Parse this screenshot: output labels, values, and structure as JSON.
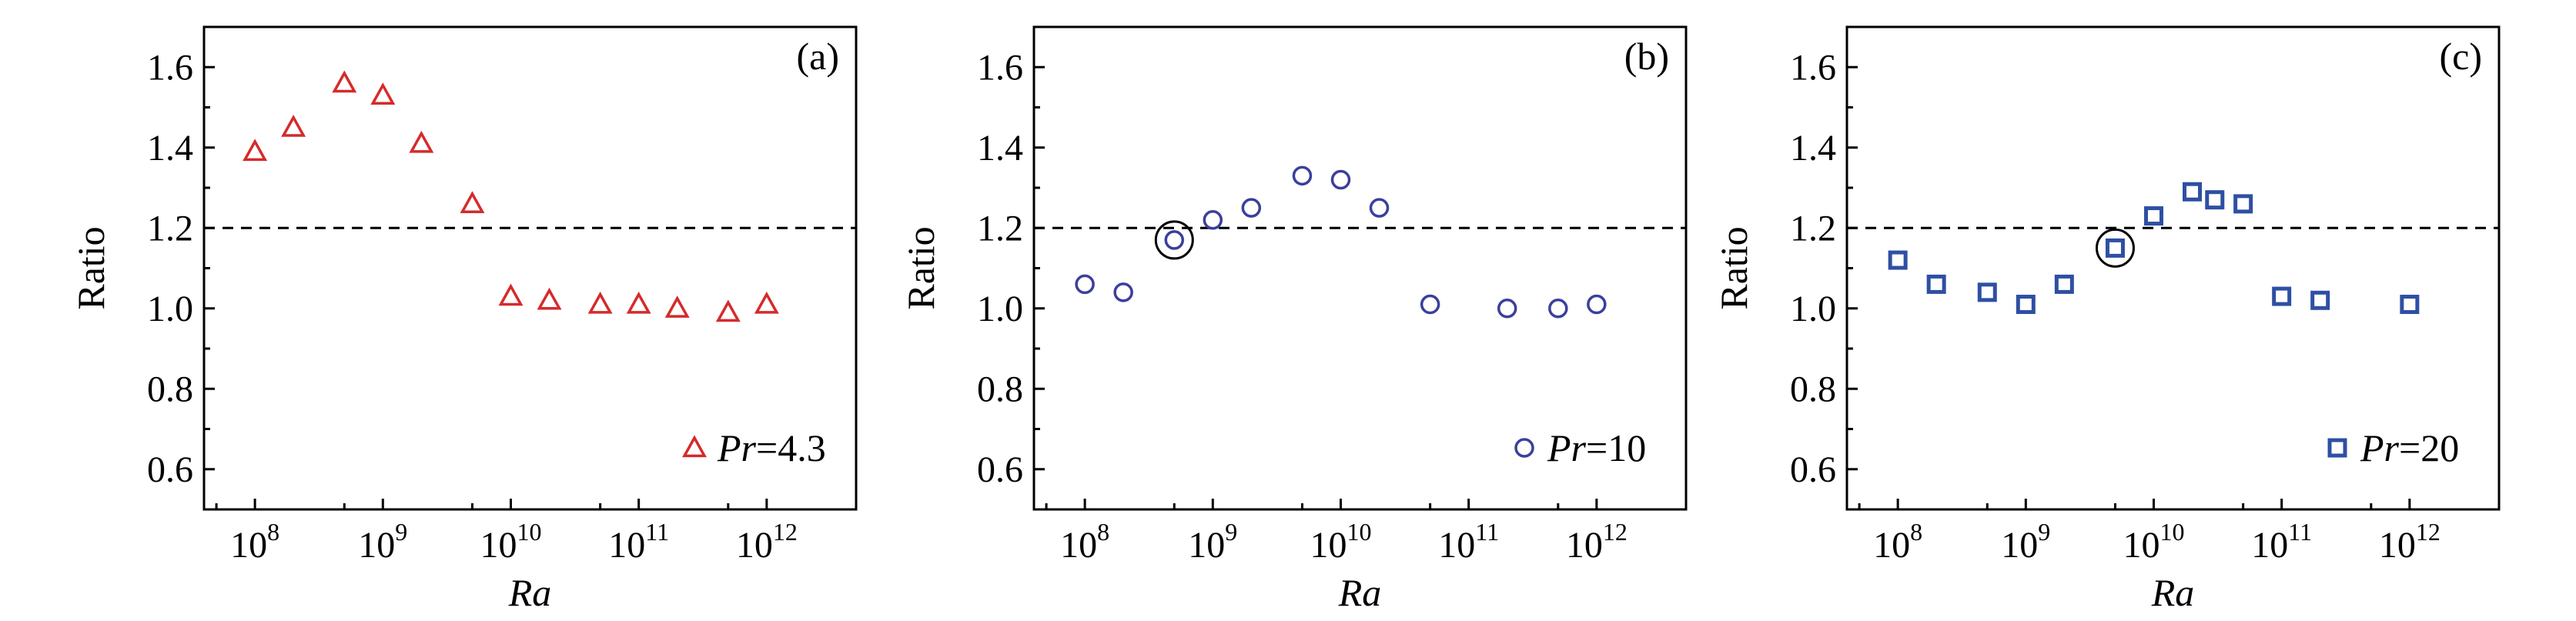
{
  "chart_data": [
    {
      "type": "scatter",
      "panel_label": "(a)",
      "xlabel": "Ra",
      "ylabel": "Ratio",
      "x_scale": "log",
      "xlim": [
        40000000,
        5000000000000
      ],
      "ylim": [
        0.5,
        1.7
      ],
      "yticks": [
        "0.6",
        "0.8",
        "1.0",
        "1.2",
        "1.4",
        "1.6"
      ],
      "xticks": [
        {
          "value": 100000000,
          "base": "10",
          "exp": "8"
        },
        {
          "value": 1000000000,
          "base": "10",
          "exp": "9"
        },
        {
          "value": 10000000000,
          "base": "10",
          "exp": "10"
        },
        {
          "value": 100000000000,
          "base": "10",
          "exp": "11"
        },
        {
          "value": 1000000000000,
          "base": "10",
          "exp": "12"
        }
      ],
      "reference_line_y": 1.2,
      "legend": {
        "prefix": "Pr",
        "suffix": "=4.3",
        "position": "bottom-right"
      },
      "marker": {
        "shape": "triangle",
        "color": "#d62a2a"
      },
      "points": [
        {
          "x": 100000000,
          "y": 1.39
        },
        {
          "x": 200000000,
          "y": 1.45
        },
        {
          "x": 500000000,
          "y": 1.56
        },
        {
          "x": 1000000000,
          "y": 1.53
        },
        {
          "x": 2000000000,
          "y": 1.41
        },
        {
          "x": 5000000000,
          "y": 1.26
        },
        {
          "x": 10000000000,
          "y": 1.03
        },
        {
          "x": 20000000000,
          "y": 1.02
        },
        {
          "x": 50000000000,
          "y": 1.01
        },
        {
          "x": 100000000000,
          "y": 1.01
        },
        {
          "x": 200000000000,
          "y": 1.0
        },
        {
          "x": 500000000000,
          "y": 0.99
        },
        {
          "x": 1000000000000,
          "y": 1.01
        }
      ],
      "highlight": null
    },
    {
      "type": "scatter",
      "panel_label": "(b)",
      "xlabel": "Ra",
      "ylabel": "Ratio",
      "x_scale": "log",
      "xlim": [
        40000000,
        5000000000000
      ],
      "ylim": [
        0.5,
        1.7
      ],
      "yticks": [
        "0.6",
        "0.8",
        "1.0",
        "1.2",
        "1.4",
        "1.6"
      ],
      "xticks": [
        {
          "value": 100000000,
          "base": "10",
          "exp": "8"
        },
        {
          "value": 1000000000,
          "base": "10",
          "exp": "9"
        },
        {
          "value": 10000000000,
          "base": "10",
          "exp": "10"
        },
        {
          "value": 100000000000,
          "base": "10",
          "exp": "11"
        },
        {
          "value": 1000000000000,
          "base": "10",
          "exp": "12"
        }
      ],
      "reference_line_y": 1.2,
      "legend": {
        "prefix": "Pr",
        "suffix": "=10",
        "position": "bottom-right"
      },
      "marker": {
        "shape": "circle",
        "color": "#3b3f9c"
      },
      "points": [
        {
          "x": 100000000,
          "y": 1.06
        },
        {
          "x": 200000000,
          "y": 1.04
        },
        {
          "x": 500000000,
          "y": 1.17
        },
        {
          "x": 1000000000,
          "y": 1.22
        },
        {
          "x": 2000000000,
          "y": 1.25
        },
        {
          "x": 5000000000,
          "y": 1.33
        },
        {
          "x": 10000000000,
          "y": 1.32
        },
        {
          "x": 20000000000,
          "y": 1.25
        },
        {
          "x": 50000000000,
          "y": 1.01
        },
        {
          "x": 200000000000,
          "y": 1.0
        },
        {
          "x": 500000000000,
          "y": 1.0
        },
        {
          "x": 1000000000000,
          "y": 1.01
        }
      ],
      "highlight": {
        "x": 500000000,
        "y": 1.17
      }
    },
    {
      "type": "scatter",
      "panel_label": "(c)",
      "xlabel": "Ra",
      "ylabel": "Ratio",
      "x_scale": "log",
      "xlim": [
        40000000,
        5000000000000
      ],
      "ylim": [
        0.5,
        1.7
      ],
      "yticks": [
        "0.6",
        "0.8",
        "1.0",
        "1.2",
        "1.4",
        "1.6"
      ],
      "xticks": [
        {
          "value": 100000000,
          "base": "10",
          "exp": "8"
        },
        {
          "value": 1000000000,
          "base": "10",
          "exp": "9"
        },
        {
          "value": 10000000000,
          "base": "10",
          "exp": "10"
        },
        {
          "value": 100000000000,
          "base": "10",
          "exp": "11"
        },
        {
          "value": 1000000000000,
          "base": "10",
          "exp": "12"
        }
      ],
      "reference_line_y": 1.2,
      "legend": {
        "prefix": "Pr",
        "suffix": "=20",
        "position": "bottom-right"
      },
      "marker": {
        "shape": "square",
        "color": "#2e4fa3"
      },
      "points": [
        {
          "x": 100000000,
          "y": 1.12
        },
        {
          "x": 200000000,
          "y": 1.06
        },
        {
          "x": 500000000,
          "y": 1.04
        },
        {
          "x": 1000000000,
          "y": 1.01
        },
        {
          "x": 2000000000,
          "y": 1.06
        },
        {
          "x": 5000000000,
          "y": 1.15
        },
        {
          "x": 10000000000,
          "y": 1.23
        },
        {
          "x": 20000000000,
          "y": 1.29
        },
        {
          "x": 30000000000,
          "y": 1.27
        },
        {
          "x": 50000000000,
          "y": 1.26
        },
        {
          "x": 100000000000,
          "y": 1.03
        },
        {
          "x": 200000000000,
          "y": 1.02
        },
        {
          "x": 1000000000000,
          "y": 1.01
        }
      ],
      "highlight": {
        "x": 5000000000,
        "y": 1.15
      }
    }
  ]
}
